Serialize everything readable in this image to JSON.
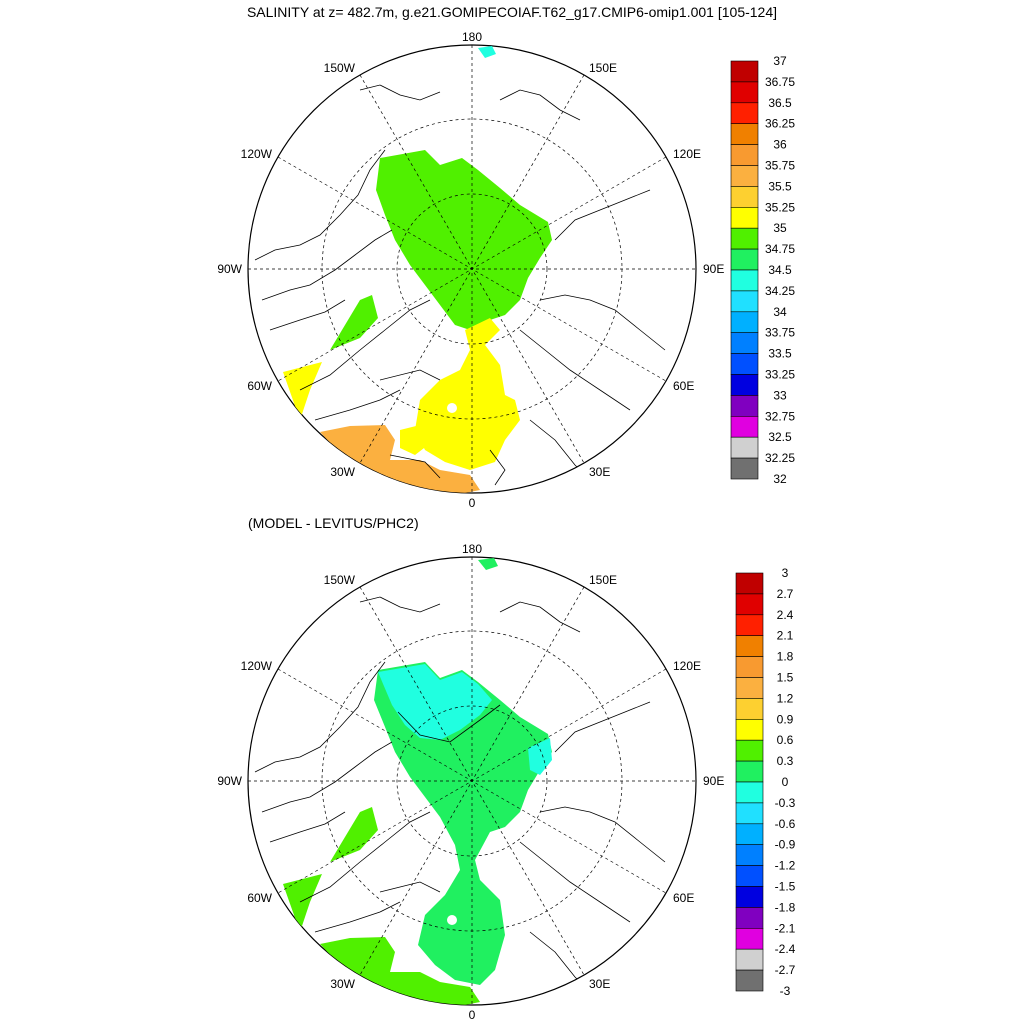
{
  "title": "SALINITY at z= 482.7m, g.e21.GOMIPECOIAF.T62_g17.CMIP6-omip1.001 [105-124]",
  "subtitle": "(MODEL - LEVITUS/PHC2)",
  "longitude_labels": {
    "n180": "180",
    "w150": "150W",
    "e150": "150E",
    "w120": "120W",
    "e120": "120E",
    "w90": "90W",
    "e90": "90E",
    "w60": "60W",
    "e60": "60E",
    "w30": "30W",
    "e30": "30E",
    "zero": "0"
  },
  "colorbar_top": {
    "labels": [
      "37",
      "36.75",
      "36.5",
      "36.25",
      "36",
      "35.75",
      "35.5",
      "35.25",
      "35",
      "34.75",
      "34.5",
      "34.25",
      "34",
      "33.75",
      "33.5",
      "33.25",
      "33",
      "32.75",
      "32.5",
      "32.25",
      "32"
    ],
    "colors": [
      "#c00000",
      "#e00000",
      "#ff2000",
      "#f08000",
      "#f89a30",
      "#fbb040",
      "#fdd030",
      "#ffff00",
      "#50f000",
      "#20f060",
      "#20ffe0",
      "#20e0ff",
      "#00b0ff",
      "#0080ff",
      "#0050ff",
      "#0000e0",
      "#8000c0",
      "#e000e0",
      "#d0d0d0",
      "#707070"
    ]
  },
  "colorbar_bottom": {
    "labels": [
      "3",
      "2.7",
      "2.4",
      "2.1",
      "1.8",
      "1.5",
      "1.2",
      "0.9",
      "0.6",
      "0.3",
      "0",
      "-0.3",
      "-0.6",
      "-0.9",
      "-1.2",
      "-1.5",
      "-1.8",
      "-2.1",
      "-2.4",
      "-2.7",
      "-3"
    ],
    "colors": [
      "#c00000",
      "#e00000",
      "#ff2000",
      "#f08000",
      "#f89a30",
      "#fbb040",
      "#fdd030",
      "#ffff00",
      "#50f000",
      "#20f060",
      "#20ffe0",
      "#20e0ff",
      "#00b0ff",
      "#0080ff",
      "#0050ff",
      "#0000e0",
      "#8000c0",
      "#e000e0",
      "#d0d0d0",
      "#707070"
    ]
  },
  "colors": {
    "green_field": "#50f000",
    "yellow_field": "#ffff00",
    "orange_field": "#fbb040",
    "diff_green": "#20f060",
    "diff_lightgreen": "#50f000",
    "diff_cyan": "#20ffe0"
  }
}
